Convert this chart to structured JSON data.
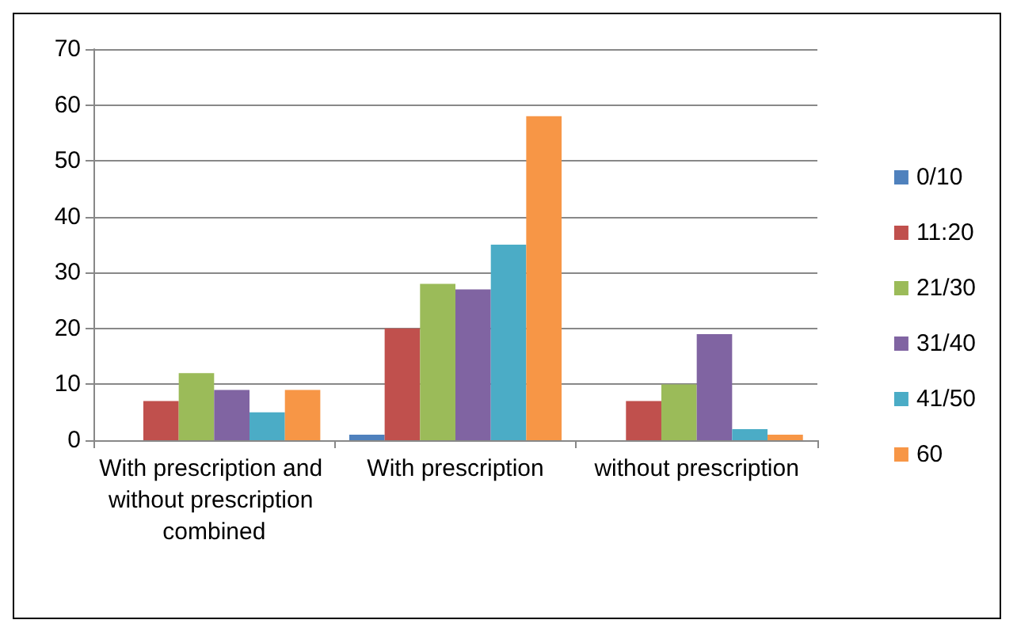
{
  "chart_data": {
    "type": "bar",
    "categories": [
      "With prescription and without prescription combined",
      "With prescription",
      "without prescription"
    ],
    "series": [
      {
        "name": "0/10",
        "color": "#4f81bd",
        "values": [
          0,
          1,
          0
        ]
      },
      {
        "name": "11:20",
        "color": "#c0504d",
        "values": [
          7,
          20,
          7
        ]
      },
      {
        "name": "21/30",
        "color": "#9bbb59",
        "values": [
          12,
          28,
          10
        ]
      },
      {
        "name": "31/40",
        "color": "#8064a2",
        "values": [
          9,
          27,
          19
        ]
      },
      {
        "name": "41/50",
        "color": "#4bacc6",
        "values": [
          5,
          35,
          2
        ]
      },
      {
        "name": "60",
        "color": "#f79646",
        "values": [
          9,
          58,
          1
        ]
      }
    ],
    "ylim": [
      0,
      70
    ],
    "yticks": [
      0,
      10,
      20,
      30,
      40,
      50,
      60,
      70
    ],
    "grid": "y",
    "legend": "right"
  }
}
